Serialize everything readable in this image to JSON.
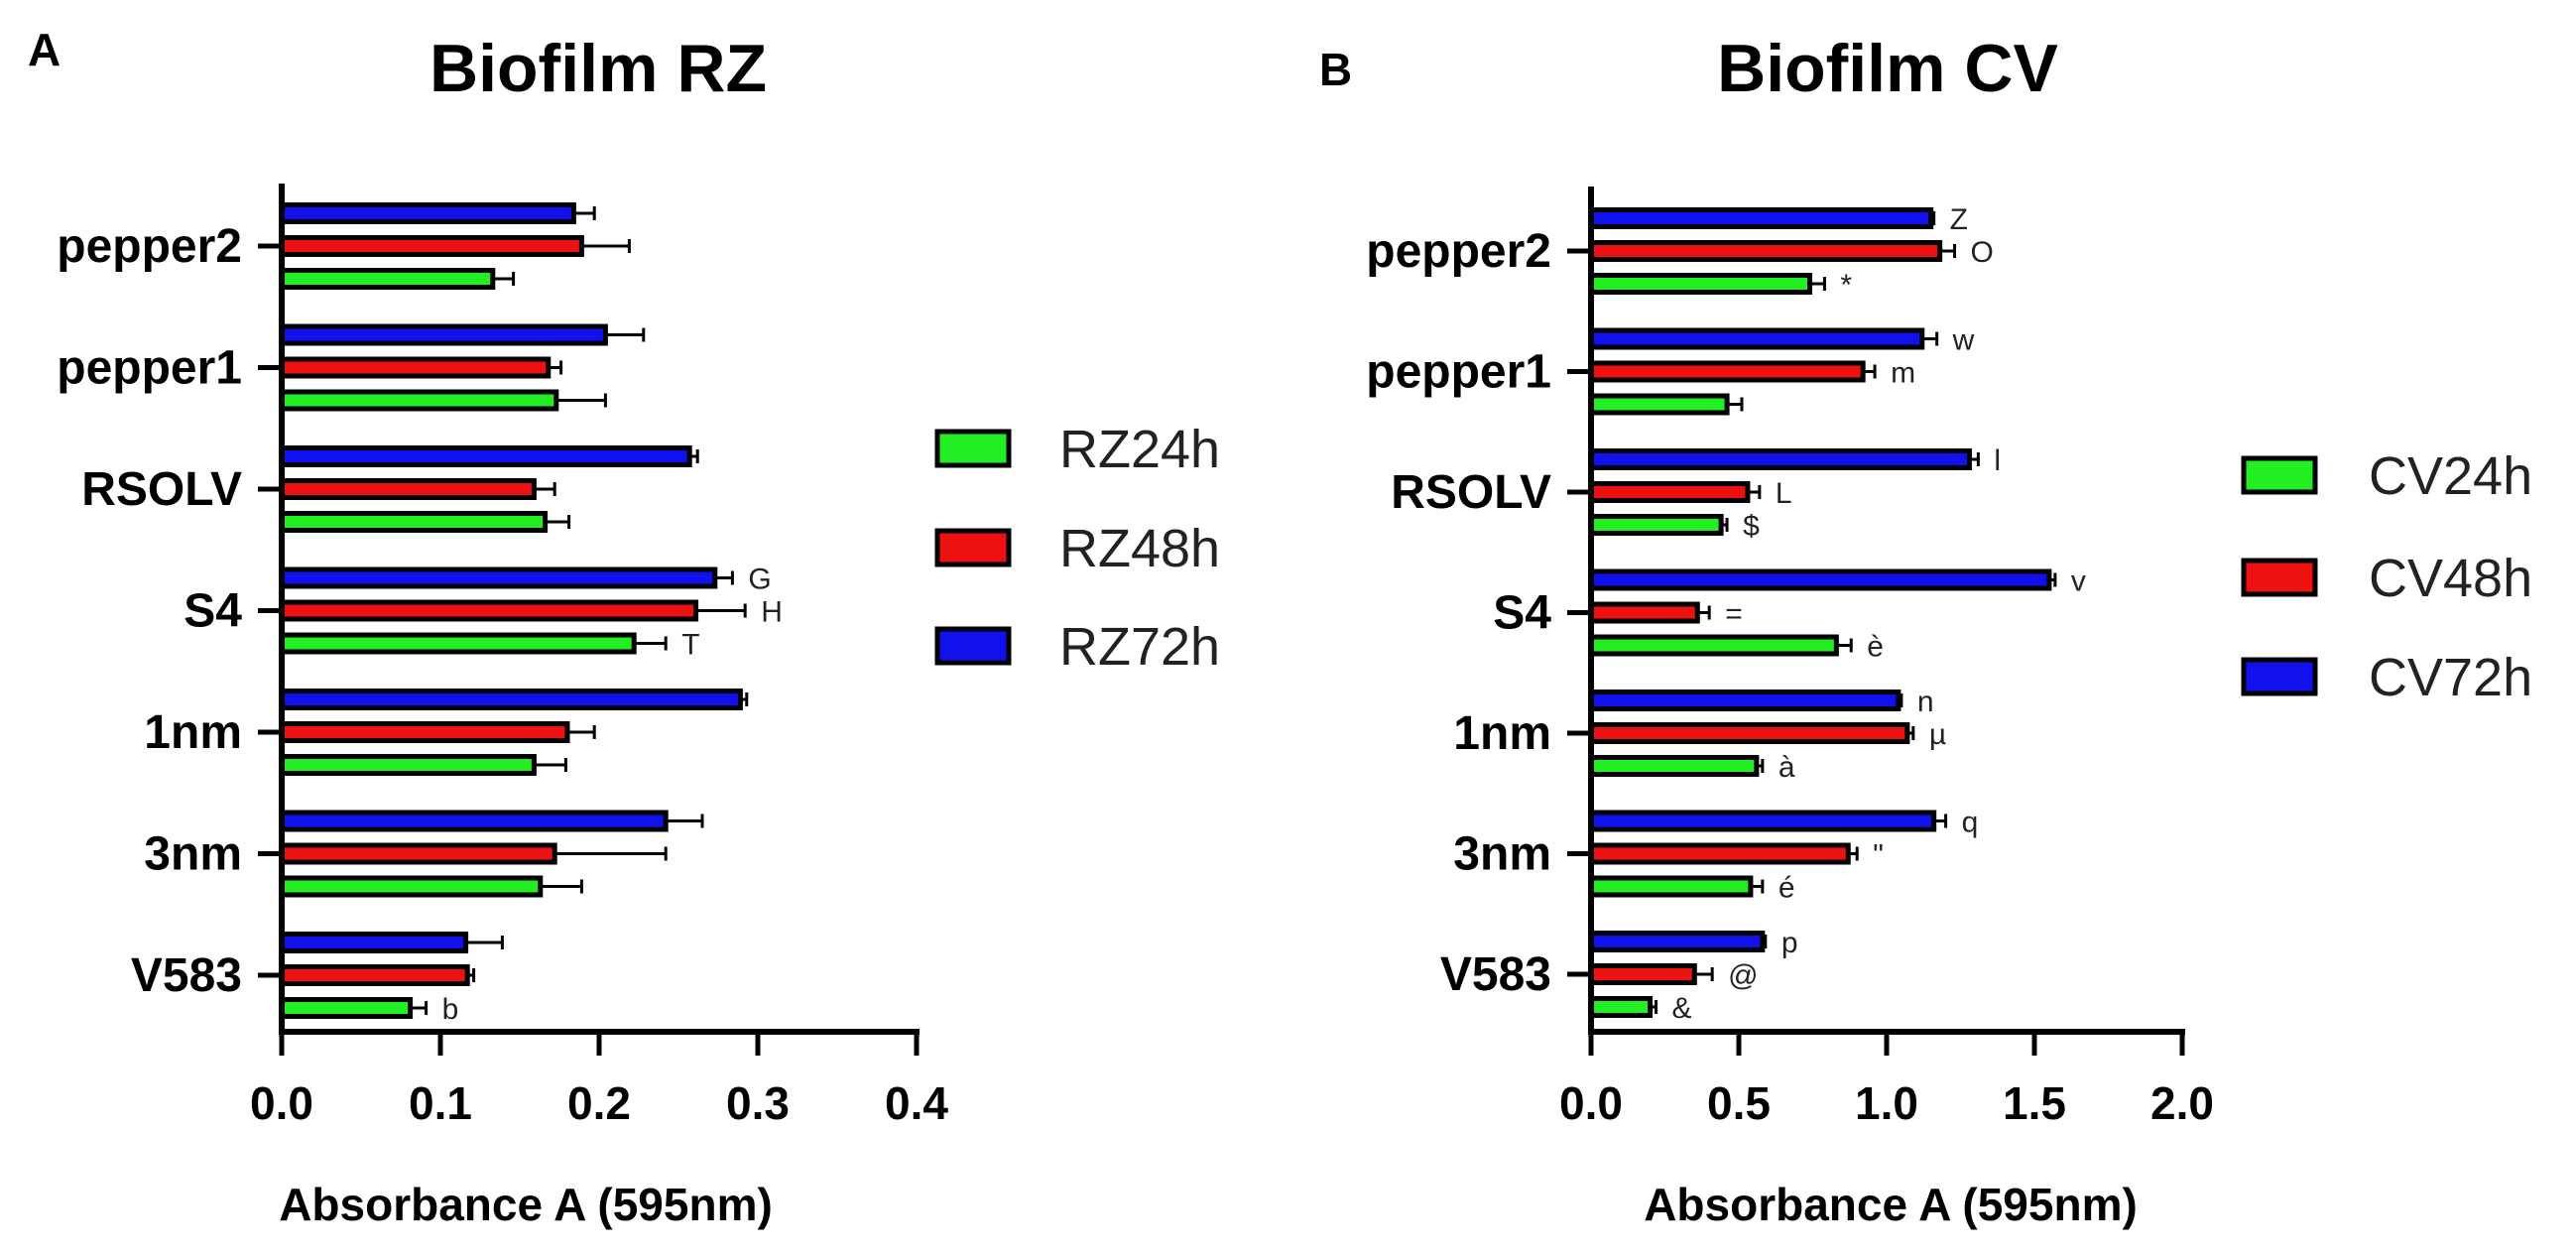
{
  "chart_data": [
    {
      "panel": "A",
      "type": "bar",
      "orientation": "horizontal",
      "title": "Biofilm RZ",
      "xlabel": "Absorbance A (595nm)",
      "ylabel": "",
      "xlim": [
        0,
        0.4
      ],
      "xticks": [
        "0.0",
        "0.1",
        "0.2",
        "0.3",
        "0.4"
      ],
      "xtick_values": [
        0,
        0.1,
        0.2,
        0.3,
        0.4
      ],
      "categories": [
        "pepper2",
        "pepper1",
        "RSOLV",
        "S4",
        "1nm",
        "3nm",
        "V583"
      ],
      "legend_position": "right",
      "series": [
        {
          "name": "RZ24h",
          "color": "#22ee22",
          "values": [
            0.133,
            0.173,
            0.166,
            0.222,
            0.159,
            0.163,
            0.081
          ],
          "errors": [
            0.013,
            0.031,
            0.015,
            0.02,
            0.02,
            0.026,
            0.01
          ],
          "annotations": [
            "",
            "",
            "",
            "T",
            "",
            "",
            "b"
          ]
        },
        {
          "name": "RZ48h",
          "color": "#ee1111",
          "values": [
            0.189,
            0.168,
            0.159,
            0.261,
            0.18,
            0.172,
            0.117
          ],
          "errors": [
            0.03,
            0.008,
            0.013,
            0.031,
            0.017,
            0.07,
            0.004
          ],
          "annotations": [
            "",
            "",
            "",
            "H",
            "",
            "",
            ""
          ]
        },
        {
          "name": "RZ72h",
          "color": "#1111ee",
          "values": [
            0.184,
            0.204,
            0.257,
            0.273,
            0.289,
            0.242,
            0.116
          ],
          "errors": [
            0.013,
            0.024,
            0.005,
            0.011,
            0.004,
            0.023,
            0.023
          ],
          "annotations": [
            "",
            "",
            "",
            "G",
            "",
            "",
            ""
          ]
        }
      ]
    },
    {
      "panel": "B",
      "type": "bar",
      "orientation": "horizontal",
      "title": "Biofilm CV",
      "xlabel": "Absorbance A (595nm)",
      "ylabel": "",
      "xlim": [
        0,
        2.0
      ],
      "xticks": [
        "0.0",
        "0.5",
        "1.0",
        "1.5",
        "2.0"
      ],
      "xtick_values": [
        0,
        0.5,
        1.0,
        1.5,
        2.0
      ],
      "categories": [
        "pepper2",
        "pepper1",
        "RSOLV",
        "S4",
        "1nm",
        "3nm",
        "V583"
      ],
      "legend_position": "right",
      "series": [
        {
          "name": "CV24h",
          "color": "#22ee22",
          "values": [
            0.74,
            0.46,
            0.44,
            0.83,
            0.56,
            0.54,
            0.2
          ],
          "errors": [
            0.05,
            0.05,
            0.02,
            0.05,
            0.02,
            0.04,
            0.02
          ],
          "annotations": [
            "*",
            "",
            "$",
            "è",
            "à",
            "é",
            "&"
          ]
        },
        {
          "name": "CV48h",
          "color": "#ee1111",
          "values": [
            1.18,
            0.92,
            0.53,
            0.36,
            1.07,
            0.87,
            0.35
          ],
          "errors": [
            0.05,
            0.04,
            0.04,
            0.04,
            0.02,
            0.03,
            0.06
          ],
          "annotations": [
            "O",
            "m",
            "L",
            "=",
            "µ",
            "\"",
            "@"
          ]
        },
        {
          "name": "CV72h",
          "color": "#1111ee",
          "values": [
            1.15,
            1.12,
            1.28,
            1.55,
            1.04,
            1.16,
            0.58
          ],
          "errors": [
            0.01,
            0.05,
            0.03,
            0.02,
            0.01,
            0.04,
            0.01
          ],
          "annotations": [
            "Z",
            "w",
            "l",
            "v",
            "n",
            "q",
            "p"
          ]
        }
      ]
    }
  ]
}
